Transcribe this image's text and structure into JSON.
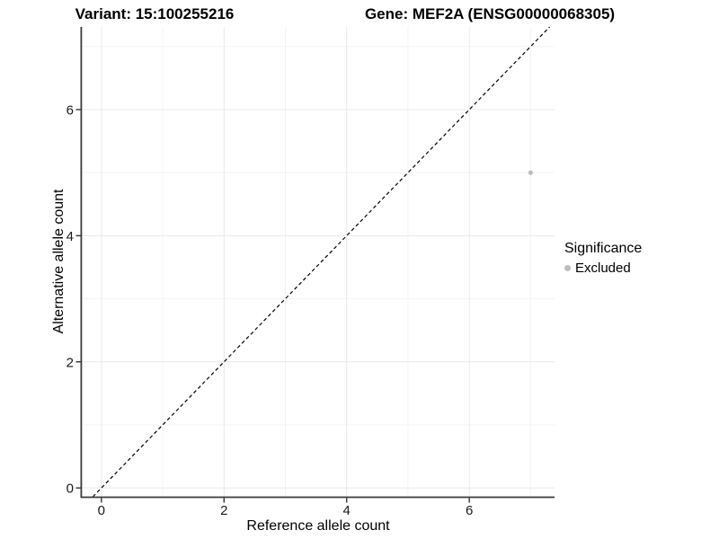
{
  "chart_data": {
    "type": "scatter",
    "titles": {
      "variant": "Variant: 15:100255216",
      "gene": "Gene: MEF2A (ENSG00000068305)"
    },
    "xlabel": "Reference allele count",
    "ylabel": "Alternative allele count",
    "xlim": [
      -0.32,
      7.39
    ],
    "ylim": [
      -0.14,
      7.31
    ],
    "x_major_ticks": [
      0,
      2,
      4,
      6
    ],
    "x_minor_ticks": [
      1,
      3,
      5,
      7
    ],
    "y_major_ticks": [
      0,
      2,
      4,
      6
    ],
    "y_minor_ticks": [
      1,
      3,
      5,
      7
    ],
    "grid": true,
    "abline": {
      "slope": 1,
      "intercept": 0,
      "style": "dashed",
      "color": "#000000"
    },
    "points": [
      {
        "x": 7,
        "y": 5,
        "significance": "Excluded",
        "color": "#bdbdbd"
      }
    ],
    "legend": {
      "title": "Significance",
      "position": "right",
      "items": [
        {
          "label": "Excluded",
          "color": "#bdbdbd"
        }
      ]
    },
    "colors": {
      "background": "#ffffff",
      "grid_major": "#e8e8e8",
      "grid_minor": "#f3f3f3",
      "axis_line": "#3a3a3a",
      "tick_mark": "#333333",
      "tick_label": "#1a1a1a",
      "point": "#bdbdbd"
    }
  }
}
